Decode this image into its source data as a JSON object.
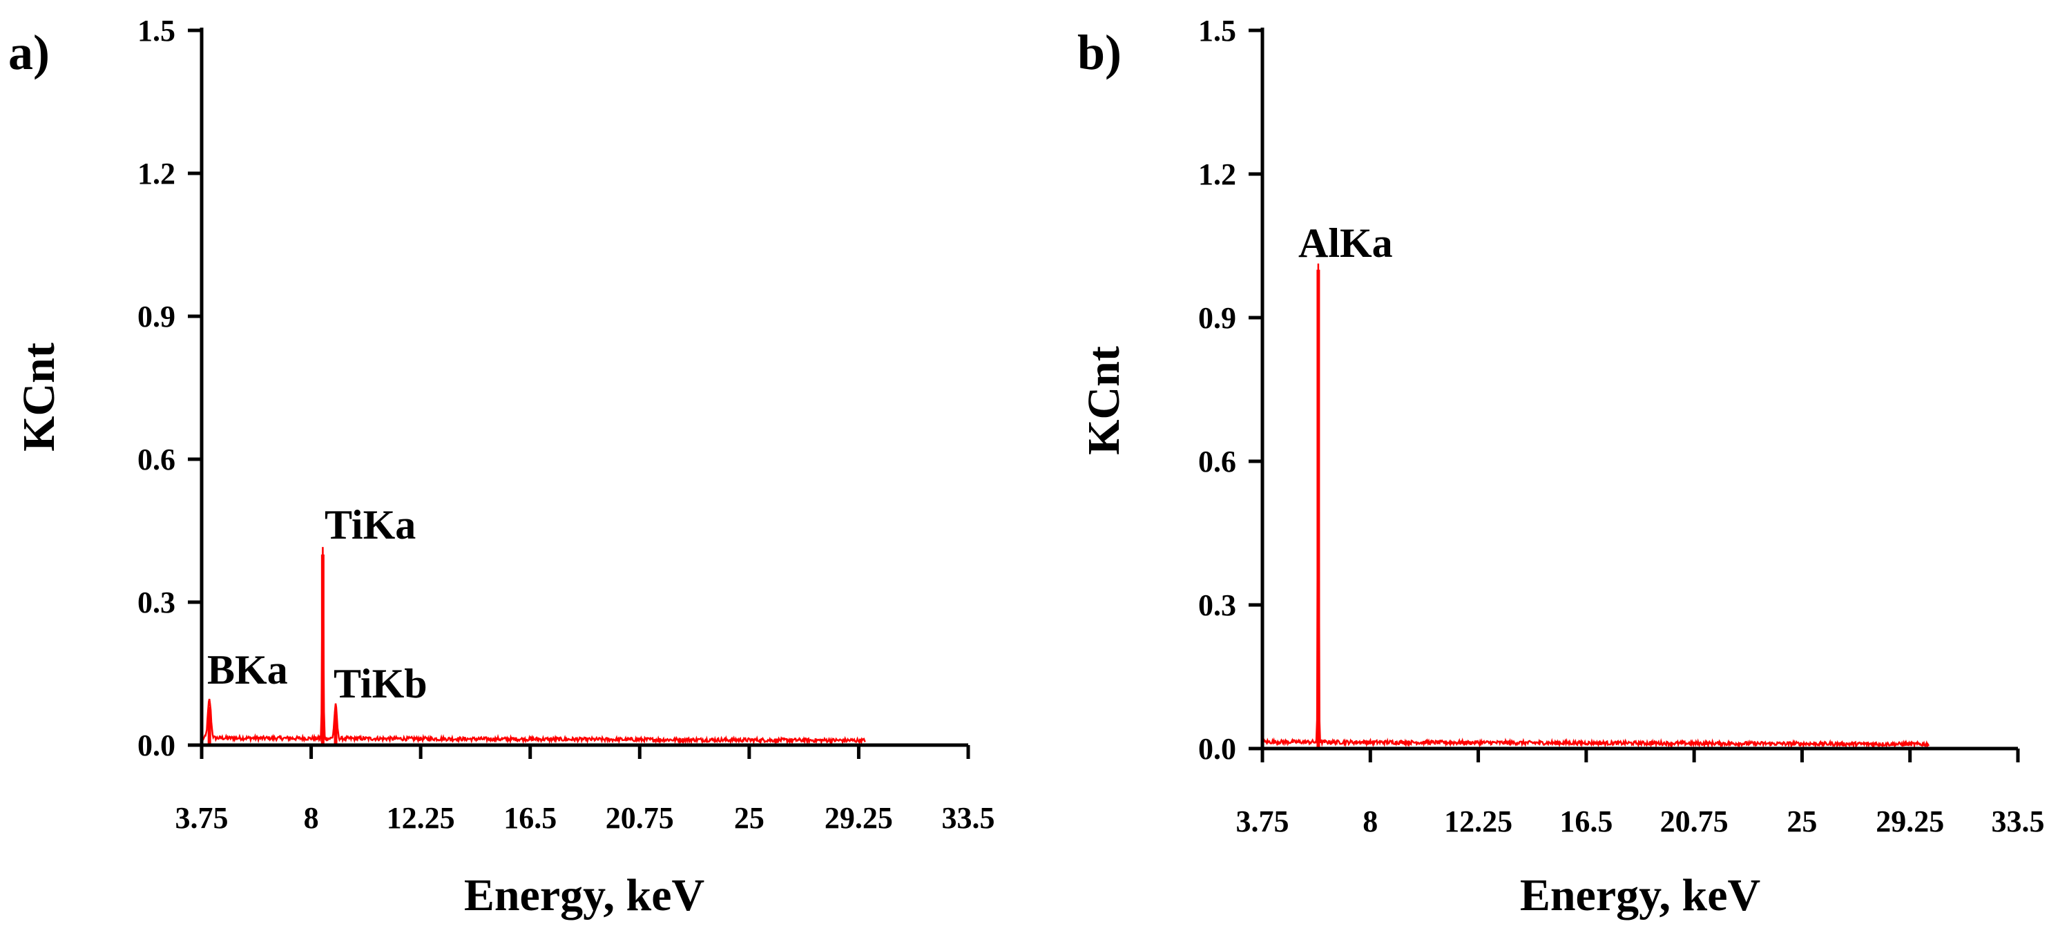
{
  "chart_data": [
    {
      "type": "line",
      "panel_label": "a)",
      "xlabel": "Energy, keV",
      "ylabel": "KCnt",
      "xlim": [
        3.75,
        33.5
      ],
      "ylim": [
        0.0,
        1.5
      ],
      "x_ticks": [
        "3.75",
        "8",
        "12.25",
        "16.5",
        "20.75",
        "25",
        "29.25",
        "33.5"
      ],
      "y_ticks": [
        "0.0",
        "0.3",
        "0.6",
        "0.9",
        "1.2",
        "1.5"
      ],
      "series_color": "#ff0000",
      "background_level": 0.015,
      "noise_end": 29.5,
      "peaks": [
        {
          "label": "BKa",
          "energy": 4.05,
          "height": 0.08,
          "width": 0.12
        },
        {
          "label": "TiKa",
          "energy": 8.45,
          "height": 0.4,
          "width": 0.05
        },
        {
          "label": "TiKb",
          "energy": 8.95,
          "height": 0.07,
          "width": 0.1
        }
      ]
    },
    {
      "type": "line",
      "panel_label": "b)",
      "xlabel": "Energy, keV",
      "ylabel": "KCnt",
      "xlim": [
        3.75,
        33.5
      ],
      "ylim": [
        0.0,
        1.5
      ],
      "x_ticks": [
        "3.75",
        "8",
        "12.25",
        "16.5",
        "20.75",
        "25",
        "29.25",
        "33.5"
      ],
      "y_ticks": [
        "0.0",
        "0.3",
        "0.6",
        "0.9",
        "1.2",
        "1.5"
      ],
      "series_color": "#ff0000",
      "background_level": 0.014,
      "noise_end": 30.0,
      "peaks": [
        {
          "label": "AlKa",
          "energy": 5.95,
          "height": 1.0,
          "width": 0.04
        }
      ]
    }
  ]
}
